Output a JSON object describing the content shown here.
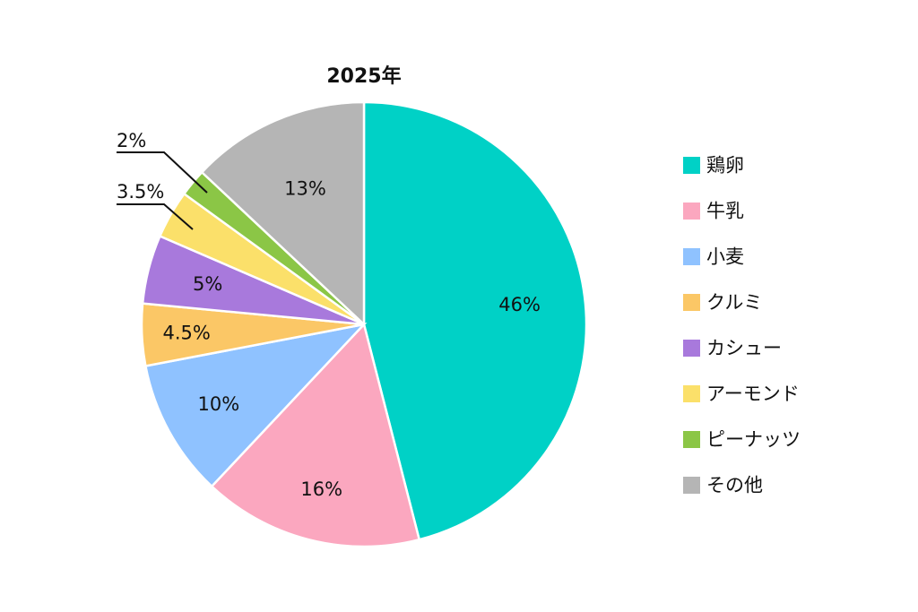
{
  "chart_data": {
    "type": "pie",
    "title": "2025年",
    "categories": [
      "鶏卵",
      "牛乳",
      "小麦",
      "クルミ",
      "カシュー",
      "アーモンド",
      "ピーナッツ",
      "その他"
    ],
    "values": [
      46,
      16,
      10,
      4.5,
      5,
      3.5,
      2,
      13
    ],
    "value_labels": [
      "46%",
      "16%",
      "10%",
      "4.5%",
      "5%",
      "3.5%",
      "2%",
      "13%"
    ],
    "colors": [
      "#00d1c6",
      "#fba7bf",
      "#8fc2ff",
      "#fbc766",
      "#a879dc",
      "#fbe06a",
      "#8bc646",
      "#b5b5b5"
    ],
    "legend_position": "right",
    "start": "top",
    "direction": "clockwise"
  }
}
